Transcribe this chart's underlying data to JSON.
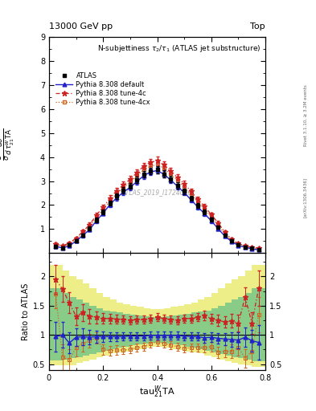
{
  "title": "N-subjettiness $\\tau_2/\\tau_1$ (ATLAS jet substructure)",
  "header_left": "13000 GeV pp",
  "header_right": "Top",
  "watermark": "ATLAS_2019_I1724098",
  "rivet_text": "Rivet 3.1.10, ≥ 3.2M events",
  "arxiv_text": "[arXiv:1306.3436]",
  "xlabel": "tau$^W_{21}$TA",
  "ylabel_line1": "$\\frac{1}{\\sigma}\\frac{d\\sigma}{d\\,\\tau^{W}_{21}\\mathrm{TA}}$",
  "ratio_ylabel": "Ratio to ATLAS",
  "ylim_main": [
    0,
    9
  ],
  "ylim_ratio": [
    0.4,
    2.4
  ],
  "xlim": [
    0.0,
    0.8
  ],
  "x_data": [
    0.025,
    0.05,
    0.075,
    0.1,
    0.125,
    0.15,
    0.175,
    0.2,
    0.225,
    0.25,
    0.275,
    0.3,
    0.325,
    0.35,
    0.375,
    0.4,
    0.425,
    0.45,
    0.475,
    0.5,
    0.525,
    0.55,
    0.575,
    0.6,
    0.625,
    0.65,
    0.675,
    0.7,
    0.725,
    0.75,
    0.775
  ],
  "atlas_y": [
    0.28,
    0.22,
    0.35,
    0.52,
    0.75,
    1.02,
    1.38,
    1.72,
    2.08,
    2.38,
    2.62,
    2.8,
    3.05,
    3.28,
    3.42,
    3.48,
    3.3,
    3.08,
    2.82,
    2.58,
    2.28,
    1.98,
    1.72,
    1.4,
    1.08,
    0.75,
    0.52,
    0.35,
    0.25,
    0.2,
    0.15
  ],
  "atlas_yerr": [
    0.06,
    0.05,
    0.06,
    0.06,
    0.07,
    0.08,
    0.09,
    0.1,
    0.11,
    0.12,
    0.12,
    0.13,
    0.13,
    0.14,
    0.14,
    0.15,
    0.14,
    0.13,
    0.13,
    0.12,
    0.11,
    0.1,
    0.1,
    0.09,
    0.08,
    0.07,
    0.06,
    0.05,
    0.05,
    0.04,
    0.04
  ],
  "py_default_y": [
    0.27,
    0.22,
    0.3,
    0.5,
    0.73,
    0.98,
    1.34,
    1.66,
    2.02,
    2.3,
    2.54,
    2.74,
    2.98,
    3.22,
    3.38,
    3.44,
    3.28,
    3.04,
    2.78,
    2.52,
    2.22,
    1.92,
    1.64,
    1.34,
    1.02,
    0.7,
    0.48,
    0.32,
    0.24,
    0.18,
    0.13
  ],
  "py_default_yerr": [
    0.05,
    0.04,
    0.05,
    0.06,
    0.07,
    0.08,
    0.09,
    0.09,
    0.1,
    0.11,
    0.11,
    0.12,
    0.12,
    0.13,
    0.13,
    0.13,
    0.13,
    0.12,
    0.12,
    0.11,
    0.1,
    0.1,
    0.09,
    0.08,
    0.07,
    0.06,
    0.05,
    0.05,
    0.04,
    0.04,
    0.03
  ],
  "py_tune4c_y": [
    0.38,
    0.3,
    0.42,
    0.62,
    0.9,
    1.18,
    1.58,
    1.92,
    2.28,
    2.6,
    2.84,
    3.08,
    3.35,
    3.62,
    3.78,
    3.85,
    3.68,
    3.42,
    3.16,
    2.88,
    2.58,
    2.24,
    1.94,
    1.6,
    1.26,
    0.87,
    0.58,
    0.4,
    0.3,
    0.24,
    0.2
  ],
  "py_tune4c_yerr": [
    0.06,
    0.05,
    0.06,
    0.07,
    0.08,
    0.09,
    0.1,
    0.11,
    0.12,
    0.13,
    0.13,
    0.14,
    0.14,
    0.15,
    0.15,
    0.16,
    0.15,
    0.14,
    0.14,
    0.13,
    0.12,
    0.11,
    0.1,
    0.09,
    0.08,
    0.07,
    0.06,
    0.05,
    0.05,
    0.04,
    0.04
  ],
  "py_tune4cx_y": [
    0.34,
    0.27,
    0.38,
    0.58,
    0.84,
    1.1,
    1.48,
    1.8,
    2.17,
    2.48,
    2.72,
    2.95,
    3.2,
    3.48,
    3.62,
    3.68,
    3.52,
    3.28,
    3.02,
    2.74,
    2.44,
    2.12,
    1.82,
    1.5,
    1.16,
    0.8,
    0.54,
    0.37,
    0.27,
    0.22,
    0.17
  ],
  "py_tune4cx_yerr": [
    0.05,
    0.04,
    0.05,
    0.06,
    0.07,
    0.08,
    0.09,
    0.1,
    0.11,
    0.12,
    0.12,
    0.13,
    0.13,
    0.14,
    0.14,
    0.15,
    0.14,
    0.13,
    0.13,
    0.12,
    0.11,
    0.1,
    0.09,
    0.08,
    0.07,
    0.06,
    0.05,
    0.05,
    0.04,
    0.04,
    0.04
  ],
  "ratio_default_y": [
    0.97,
    1.0,
    0.86,
    0.96,
    0.97,
    0.96,
    0.97,
    0.97,
    0.97,
    0.97,
    0.97,
    0.98,
    0.98,
    0.98,
    0.99,
    0.99,
    0.99,
    0.99,
    0.99,
    0.98,
    0.97,
    0.97,
    0.95,
    0.96,
    0.94,
    0.93,
    0.92,
    0.91,
    0.96,
    0.9,
    0.87
  ],
  "ratio_tune4c_y": [
    1.95,
    1.78,
    1.55,
    1.32,
    1.38,
    1.32,
    1.3,
    1.28,
    1.28,
    1.27,
    1.26,
    1.25,
    1.26,
    1.26,
    1.28,
    1.3,
    1.28,
    1.26,
    1.25,
    1.28,
    1.28,
    1.3,
    1.33,
    1.28,
    1.25,
    1.22,
    1.24,
    1.2,
    1.65,
    1.2,
    1.8
  ],
  "ratio_tune4cx_y": [
    1.7,
    0.62,
    0.57,
    0.78,
    0.85,
    0.9,
    0.95,
    0.75,
    0.73,
    0.74,
    0.74,
    0.75,
    0.78,
    0.8,
    0.85,
    0.88,
    0.85,
    0.82,
    0.8,
    0.77,
    0.78,
    0.78,
    0.78,
    0.8,
    0.7,
    0.72,
    0.72,
    0.78,
    0.6,
    0.72,
    1.35
  ],
  "ratio_default_err": [
    0.25,
    0.22,
    0.18,
    0.15,
    0.14,
    0.12,
    0.1,
    0.09,
    0.08,
    0.08,
    0.07,
    0.07,
    0.07,
    0.07,
    0.07,
    0.07,
    0.07,
    0.07,
    0.07,
    0.07,
    0.07,
    0.07,
    0.08,
    0.08,
    0.09,
    0.1,
    0.12,
    0.14,
    0.16,
    0.18,
    0.3
  ],
  "ratio_tune4c_err": [
    0.25,
    0.22,
    0.18,
    0.15,
    0.14,
    0.12,
    0.1,
    0.09,
    0.08,
    0.08,
    0.07,
    0.07,
    0.07,
    0.07,
    0.07,
    0.07,
    0.07,
    0.07,
    0.07,
    0.07,
    0.07,
    0.07,
    0.08,
    0.08,
    0.09,
    0.1,
    0.12,
    0.14,
    0.16,
    0.18,
    0.3
  ],
  "ratio_tune4cx_err": [
    0.25,
    0.22,
    0.18,
    0.15,
    0.14,
    0.12,
    0.1,
    0.09,
    0.08,
    0.08,
    0.07,
    0.07,
    0.07,
    0.07,
    0.07,
    0.07,
    0.07,
    0.07,
    0.07,
    0.07,
    0.07,
    0.07,
    0.08,
    0.08,
    0.09,
    0.1,
    0.12,
    0.14,
    0.16,
    0.18,
    0.3
  ],
  "band_yellow_lo": [
    0.48,
    0.48,
    0.48,
    0.52,
    0.55,
    0.58,
    0.62,
    0.65,
    0.68,
    0.7,
    0.72,
    0.74,
    0.76,
    0.78,
    0.79,
    0.8,
    0.79,
    0.78,
    0.76,
    0.74,
    0.72,
    0.7,
    0.68,
    0.65,
    0.62,
    0.58,
    0.55,
    0.52,
    0.5,
    0.48,
    0.45
  ],
  "band_yellow_hi": [
    2.2,
    2.1,
    2.0,
    1.95,
    1.88,
    1.8,
    1.72,
    1.65,
    1.6,
    1.55,
    1.52,
    1.5,
    1.48,
    1.46,
    1.44,
    1.42,
    1.44,
    1.46,
    1.48,
    1.5,
    1.52,
    1.55,
    1.6,
    1.65,
    1.72,
    1.8,
    1.88,
    1.95,
    2.0,
    2.1,
    2.2
  ],
  "band_green_lo": [
    0.56,
    0.58,
    0.6,
    0.62,
    0.64,
    0.67,
    0.7,
    0.73,
    0.76,
    0.78,
    0.8,
    0.82,
    0.84,
    0.85,
    0.86,
    0.87,
    0.86,
    0.85,
    0.84,
    0.82,
    0.8,
    0.78,
    0.76,
    0.73,
    0.7,
    0.67,
    0.64,
    0.62,
    0.6,
    0.58,
    0.55
  ],
  "band_green_hi": [
    1.8,
    1.72,
    1.65,
    1.6,
    1.55,
    1.5,
    1.46,
    1.42,
    1.4,
    1.38,
    1.36,
    1.34,
    1.33,
    1.32,
    1.31,
    1.3,
    1.31,
    1.32,
    1.33,
    1.34,
    1.36,
    1.38,
    1.4,
    1.42,
    1.46,
    1.5,
    1.55,
    1.6,
    1.65,
    1.72,
    1.8
  ],
  "atlas_color": "#000000",
  "default_color": "#2222cc",
  "tune4c_color": "#cc2222",
  "tune4cx_color": "#cc6622",
  "band_yellow": "#eeee88",
  "band_green": "#88cc88",
  "legend_entries": [
    "ATLAS",
    "Pythia 8.308 default",
    "Pythia 8.308 tune-4c",
    "Pythia 8.308 tune-4cx"
  ]
}
